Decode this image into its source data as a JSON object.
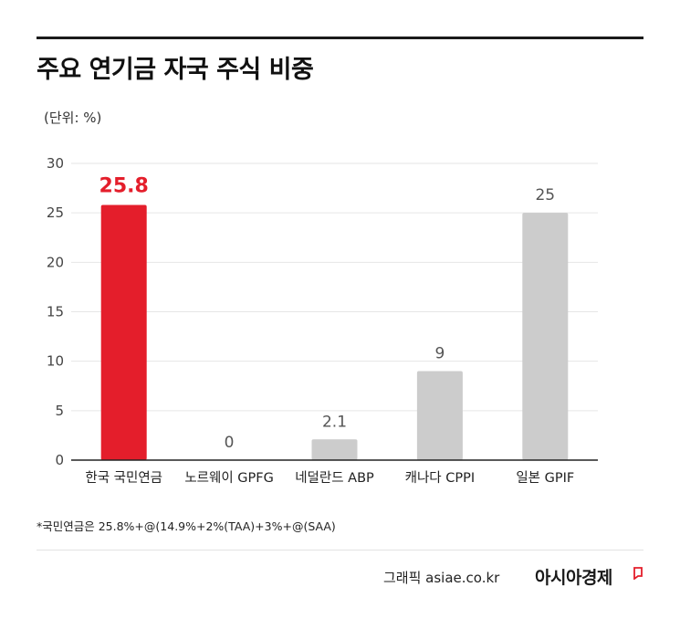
{
  "header": {
    "title": "주요 연기금 자국 주식 비중",
    "unit": "(단위: %)"
  },
  "chart_data": {
    "type": "bar",
    "categories": [
      "한국 국민연금",
      "노르웨이 GPFG",
      "네덜란드 ABP",
      "캐나다 CPPI",
      "일본 GPIF"
    ],
    "values": [
      25.8,
      0,
      2.1,
      9,
      25
    ],
    "value_labels": [
      "25.8",
      "0",
      "2.1",
      "9",
      "25"
    ],
    "y_ticks": [
      "0",
      "5",
      "10",
      "15",
      "20",
      "25",
      "30"
    ],
    "ylim": [
      0,
      30
    ],
    "grid": true,
    "colors": {
      "highlight": "#e41e2b",
      "default": "#cccccc",
      "highlight_label": "#e41e2b",
      "default_label": "#555555"
    },
    "highlight_index": 0
  },
  "footnote": "*국민연금은 25.8%+@(14.9%+2%(TAA)+3%+@(SAA)",
  "footer": {
    "credit": "그래픽  asiae.co.kr",
    "brand": "아시아경제"
  }
}
